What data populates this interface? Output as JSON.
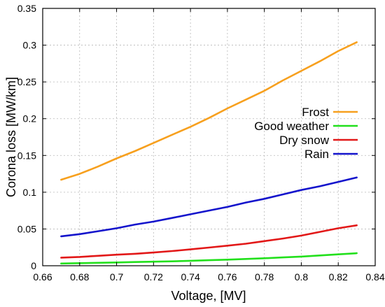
{
  "chart_data": {
    "type": "line",
    "xlabel": "Voltage, [MV]",
    "ylabel": "Corona loss [MW/km]",
    "xlim": [
      0.66,
      0.84
    ],
    "ylim": [
      0,
      0.35
    ],
    "xticks": [
      0.66,
      0.68,
      0.7,
      0.72,
      0.74,
      0.76,
      0.78,
      0.8,
      0.82,
      0.84
    ],
    "xtick_labels": [
      "0.66",
      "0.68",
      "0.7",
      "0.72",
      "0.74",
      "0.76",
      "0.78",
      "0.8",
      "0.82",
      "0.84"
    ],
    "yticks": [
      0,
      0.05,
      0.1,
      0.15,
      0.2,
      0.25,
      0.3,
      0.35
    ],
    "ytick_labels": [
      "0",
      "0.05",
      "0.1",
      "0.15",
      "0.2",
      "0.25",
      "0.3",
      "0.35"
    ],
    "grid": true,
    "legend_position": "right",
    "x": [
      0.67,
      0.68,
      0.69,
      0.7,
      0.71,
      0.72,
      0.73,
      0.74,
      0.75,
      0.76,
      0.77,
      0.78,
      0.79,
      0.8,
      0.81,
      0.82,
      0.83
    ],
    "series": [
      {
        "name": "Frost",
        "color": "#f7a01e",
        "values": [
          0.117,
          0.125,
          0.135,
          0.146,
          0.156,
          0.167,
          0.178,
          0.189,
          0.201,
          0.214,
          0.226,
          0.238,
          0.252,
          0.265,
          0.278,
          0.292,
          0.304
        ]
      },
      {
        "name": "Good weather",
        "color": "#22e01c",
        "values": [
          0.003,
          0.0035,
          0.004,
          0.0045,
          0.005,
          0.0055,
          0.006,
          0.0068,
          0.0075,
          0.0083,
          0.0092,
          0.0102,
          0.0113,
          0.0125,
          0.014,
          0.0155,
          0.017
        ]
      },
      {
        "name": "Dry snow",
        "color": "#e21818",
        "values": [
          0.011,
          0.012,
          0.0135,
          0.015,
          0.0163,
          0.018,
          0.02,
          0.0223,
          0.0247,
          0.0273,
          0.03,
          0.0335,
          0.037,
          0.041,
          0.046,
          0.051,
          0.055
        ]
      },
      {
        "name": "Rain",
        "color": "#1414cc",
        "values": [
          0.04,
          0.043,
          0.047,
          0.051,
          0.056,
          0.06,
          0.065,
          0.07,
          0.075,
          0.08,
          0.086,
          0.091,
          0.097,
          0.103,
          0.108,
          0.114,
          0.12
        ]
      }
    ]
  }
}
